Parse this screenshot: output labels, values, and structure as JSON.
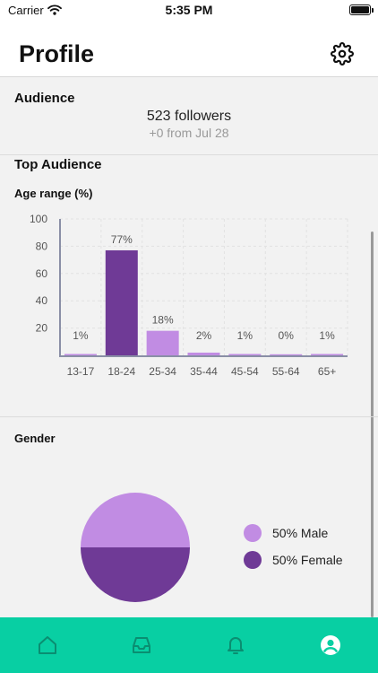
{
  "status_bar": {
    "carrier": "Carrier",
    "time": "5:35 PM"
  },
  "header": {
    "title": "Profile",
    "settings_icon": "gear-icon"
  },
  "audience": {
    "title": "Audience",
    "followers": "523 followers",
    "change": "+0 from Jul 28"
  },
  "top_audience": {
    "title": "Top Audience",
    "age_subtitle": "Age range (%)",
    "gender_subtitle": "Gender"
  },
  "chart_data": [
    {
      "type": "bar",
      "categories": [
        "13-17",
        "18-24",
        "25-34",
        "35-44",
        "45-54",
        "55-64",
        "65+"
      ],
      "values": [
        1,
        77,
        18,
        2,
        1,
        0,
        1
      ],
      "data_labels": [
        "1%",
        "77%",
        "18%",
        "2%",
        "1%",
        "0%",
        "1%"
      ],
      "ylim": [
        0,
        100
      ],
      "yticks": [
        20,
        40,
        60,
        80,
        100
      ],
      "grid": true,
      "colors": [
        "#c18ce3",
        "#6f3a96",
        "#c18ce3",
        "#c18ce3",
        "#c18ce3",
        "#c18ce3",
        "#c18ce3"
      ]
    },
    {
      "type": "pie",
      "labels": [
        "Male",
        "Female"
      ],
      "values": [
        50,
        50
      ],
      "legend": [
        "50% Male",
        "50% Female"
      ],
      "colors": [
        "#c18ce3",
        "#6f3a96"
      ],
      "legend_position": "right"
    }
  ],
  "tab_bar": {
    "color": "#08cfa3",
    "items": [
      "home-icon",
      "inbox-icon",
      "bell-icon",
      "profile-icon"
    ]
  }
}
